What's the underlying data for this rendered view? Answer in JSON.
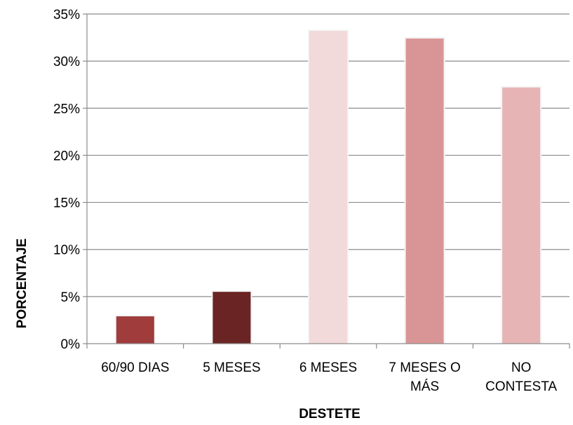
{
  "chart_data": {
    "type": "bar",
    "title": "",
    "xlabel": "DESTETE",
    "ylabel": "PORCENTAJE",
    "categories": [
      [
        "60/90 DIAS"
      ],
      [
        "5 MESES"
      ],
      [
        "6 MESES"
      ],
      [
        "7 MESES O",
        "MÁS"
      ],
      [
        "NO",
        "CONTESTA"
      ]
    ],
    "values": [
      2.9,
      5.5,
      33.2,
      32.4,
      27.2
    ],
    "bar_colors": [
      "#a03c3c",
      "#6b2424",
      "#f2d9da",
      "#d99595",
      "#e6b4b4"
    ],
    "ylim": [
      0,
      35
    ],
    "yticks": [
      0,
      5,
      10,
      15,
      20,
      25,
      30,
      35
    ],
    "ytick_suffix": "%",
    "grid": true,
    "legend": "none"
  }
}
